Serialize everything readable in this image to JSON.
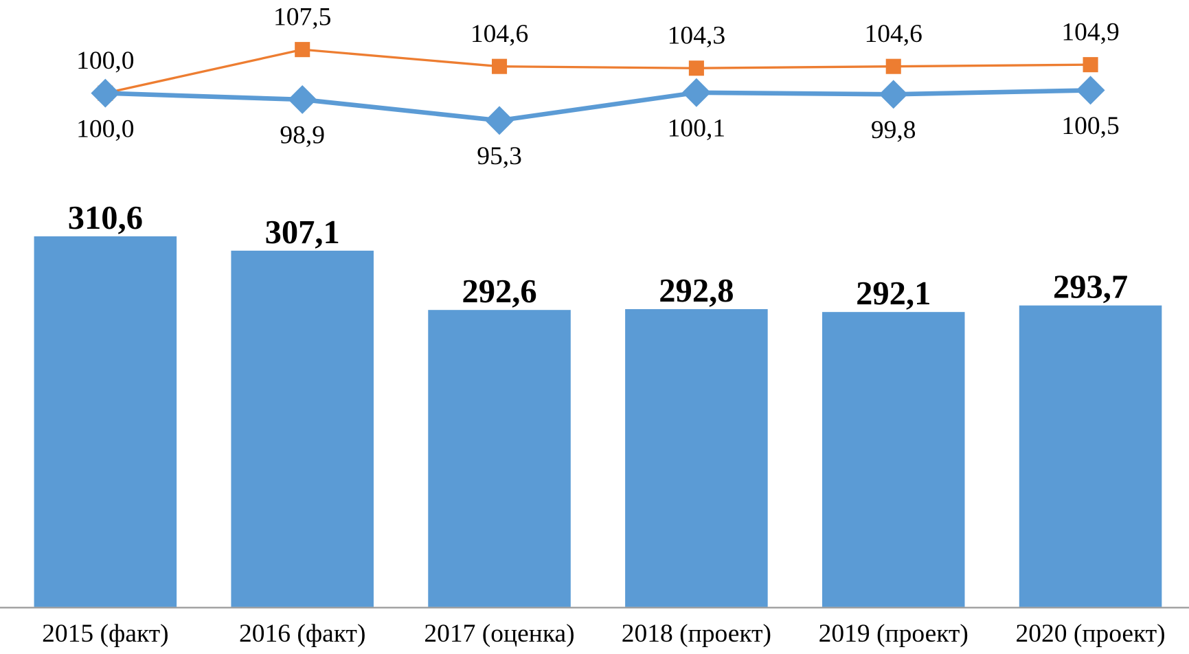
{
  "chart_data": {
    "type": "bar",
    "categories": [
      "2015 (факт)",
      "2016 (факт)",
      "2017 (оценка)",
      "2018 (проект)",
      "2019 (проект)",
      "2020 (проект)"
    ],
    "values": [
      310.6,
      307.1,
      292.6,
      292.8,
      292.1,
      293.7
    ],
    "value_labels": [
      "310,6",
      "307,1",
      "292,6",
      "292,8",
      "292,1",
      "293,7"
    ],
    "color": "#5b9bd5",
    "ylim": [
      220,
      322
    ],
    "y2lim": [
      86,
      116
    ],
    "series": [
      {
        "type": "line",
        "axis": "y2",
        "color": "#ed7d31",
        "marker": "square",
        "values": [
          100.0,
          107.5,
          104.6,
          104.3,
          104.6,
          104.9
        ],
        "value_labels": [
          "100,0",
          "107,5",
          "104,6",
          "104,3",
          "104,6",
          "104,9"
        ]
      },
      {
        "type": "line",
        "axis": "y2",
        "color": "#5b9bd5",
        "marker": "diamond",
        "values": [
          100.0,
          98.9,
          95.3,
          100.1,
          99.8,
          100.5
        ],
        "value_labels": [
          "100,0",
          "98,9",
          "95,3",
          "100,1",
          "99,8",
          "100,5"
        ]
      }
    ]
  }
}
